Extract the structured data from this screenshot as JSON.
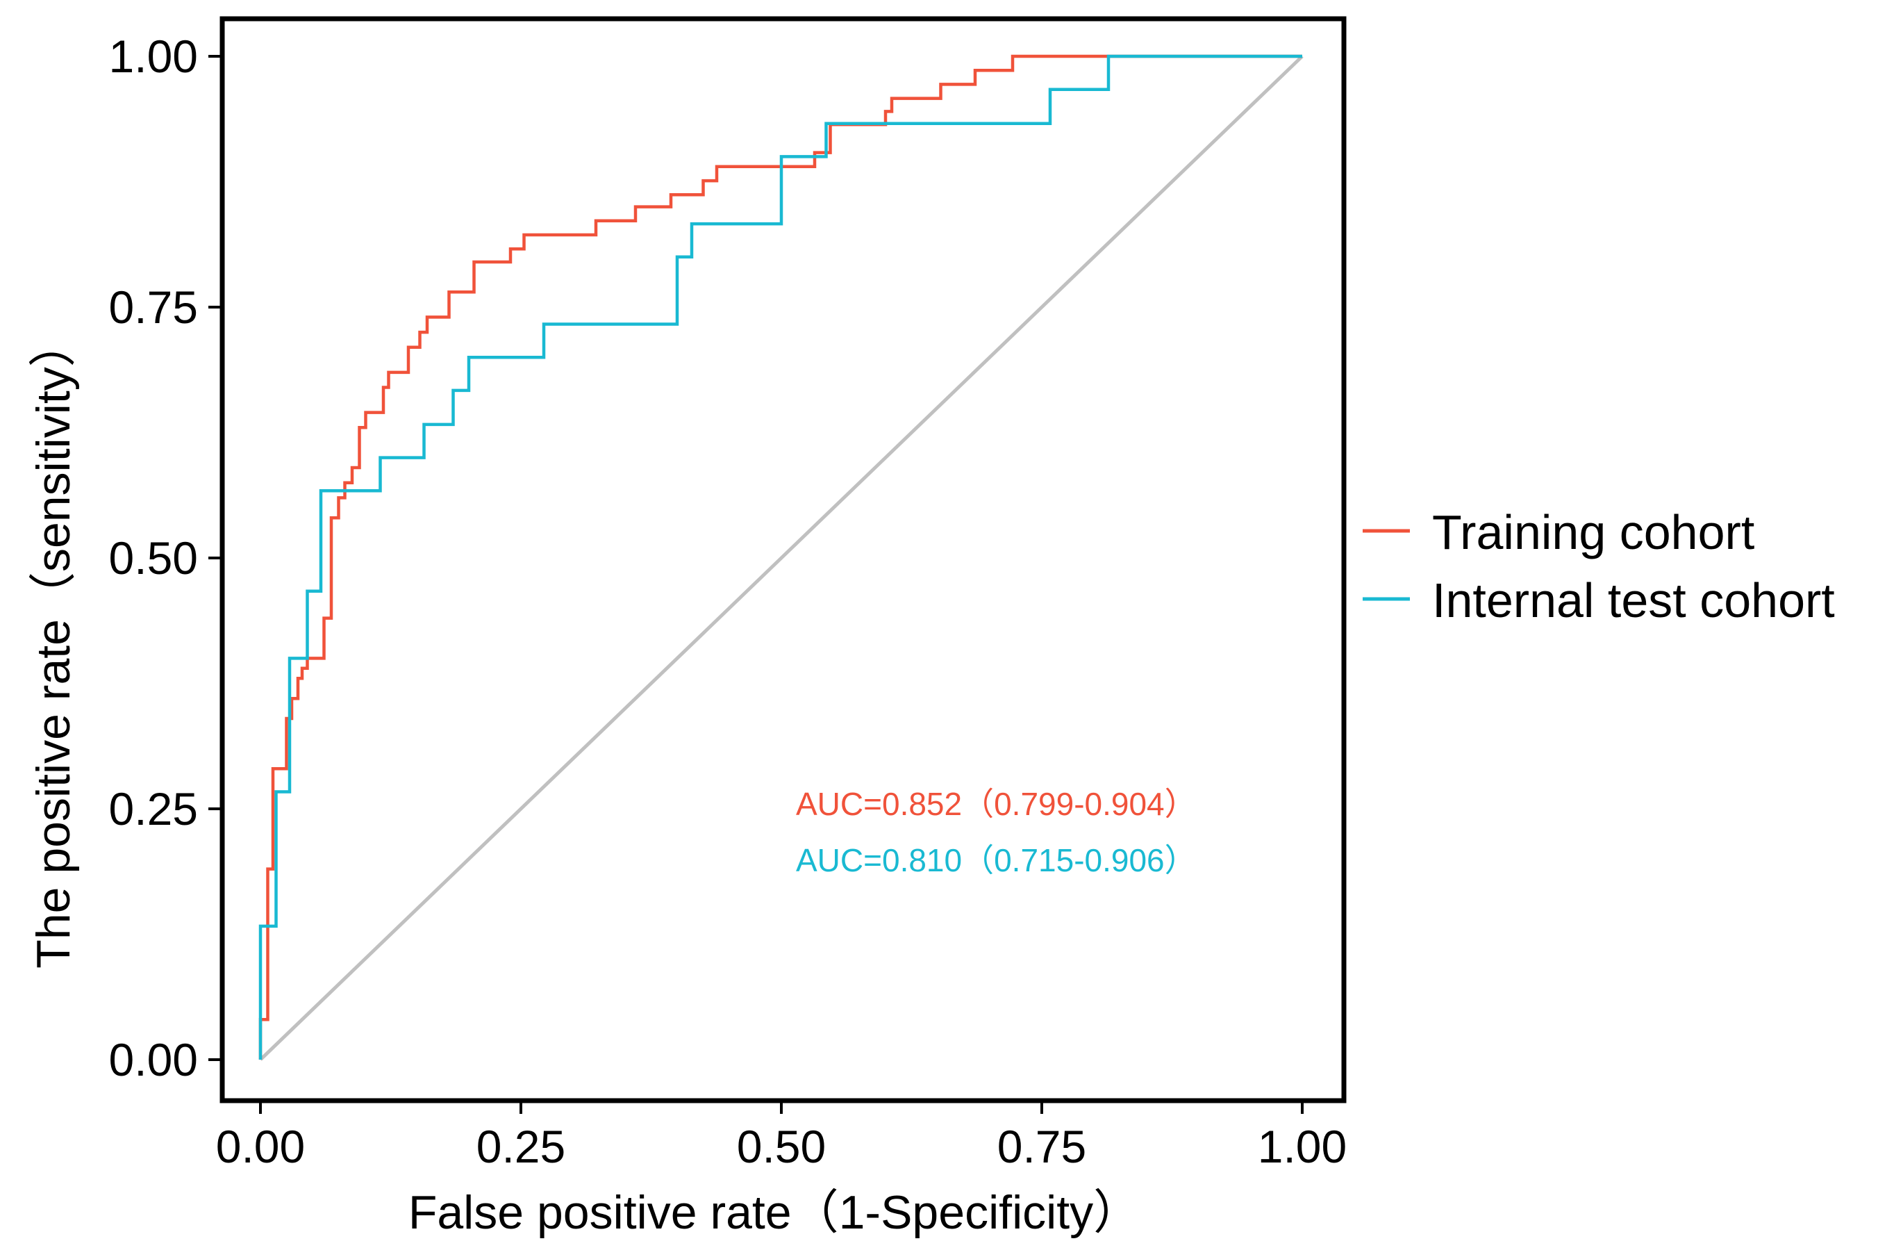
{
  "chart_data": {
    "type": "line",
    "title": "",
    "xlabel": "False positive rate（1-Specificity）",
    "ylabel": "The positive rate（sensitivity）",
    "xlim": [
      0,
      1
    ],
    "ylim": [
      0,
      1
    ],
    "xticks": [
      "0.00",
      "0.25",
      "0.50",
      "0.75",
      "1.00"
    ],
    "yticks": [
      "0.00",
      "0.25",
      "0.50",
      "0.75",
      "1.00"
    ],
    "grid": false,
    "legend_position": "right",
    "diagonal_color": "#c0c0c0",
    "series": [
      {
        "name": "Training cohort",
        "color": "#f0523a",
        "auc_label": "AUC=0.852（0.799-0.904）",
        "points": [
          [
            0.0,
            0.0
          ],
          [
            0.0,
            0.04
          ],
          [
            0.007,
            0.04
          ],
          [
            0.007,
            0.19
          ],
          [
            0.012,
            0.19
          ],
          [
            0.012,
            0.29
          ],
          [
            0.025,
            0.29
          ],
          [
            0.025,
            0.34
          ],
          [
            0.03,
            0.34
          ],
          [
            0.03,
            0.36
          ],
          [
            0.036,
            0.36
          ],
          [
            0.036,
            0.38
          ],
          [
            0.04,
            0.38
          ],
          [
            0.04,
            0.39
          ],
          [
            0.045,
            0.39
          ],
          [
            0.045,
            0.4
          ],
          [
            0.061,
            0.4
          ],
          [
            0.061,
            0.44
          ],
          [
            0.068,
            0.44
          ],
          [
            0.068,
            0.54
          ],
          [
            0.075,
            0.54
          ],
          [
            0.075,
            0.56
          ],
          [
            0.081,
            0.56
          ],
          [
            0.081,
            0.575
          ],
          [
            0.088,
            0.575
          ],
          [
            0.088,
            0.59
          ],
          [
            0.095,
            0.59
          ],
          [
            0.095,
            0.63
          ],
          [
            0.101,
            0.63
          ],
          [
            0.101,
            0.645
          ],
          [
            0.118,
            0.645
          ],
          [
            0.118,
            0.67
          ],
          [
            0.123,
            0.67
          ],
          [
            0.123,
            0.685
          ],
          [
            0.142,
            0.685
          ],
          [
            0.142,
            0.71
          ],
          [
            0.153,
            0.71
          ],
          [
            0.153,
            0.725
          ],
          [
            0.16,
            0.725
          ],
          [
            0.16,
            0.74
          ],
          [
            0.181,
            0.74
          ],
          [
            0.181,
            0.765
          ],
          [
            0.205,
            0.765
          ],
          [
            0.205,
            0.795
          ],
          [
            0.24,
            0.795
          ],
          [
            0.24,
            0.808
          ],
          [
            0.253,
            0.808
          ],
          [
            0.253,
            0.822
          ],
          [
            0.322,
            0.822
          ],
          [
            0.322,
            0.836
          ],
          [
            0.36,
            0.836
          ],
          [
            0.36,
            0.85
          ],
          [
            0.394,
            0.85
          ],
          [
            0.394,
            0.862
          ],
          [
            0.425,
            0.862
          ],
          [
            0.425,
            0.876
          ],
          [
            0.438,
            0.876
          ],
          [
            0.438,
            0.89
          ],
          [
            0.532,
            0.89
          ],
          [
            0.532,
            0.904
          ],
          [
            0.547,
            0.904
          ],
          [
            0.547,
            0.932
          ],
          [
            0.6,
            0.932
          ],
          [
            0.6,
            0.945
          ],
          [
            0.606,
            0.945
          ],
          [
            0.606,
            0.958
          ],
          [
            0.653,
            0.958
          ],
          [
            0.653,
            0.972
          ],
          [
            0.686,
            0.972
          ],
          [
            0.686,
            0.986
          ],
          [
            0.722,
            0.986
          ],
          [
            0.722,
            1.0
          ],
          [
            1.0,
            1.0
          ]
        ]
      },
      {
        "name": "Internal test cohort",
        "color": "#19b9d2",
        "auc_label": "AUC=0.810（0.715-0.906）",
        "points": [
          [
            0.0,
            0.0
          ],
          [
            0.0,
            0.133
          ],
          [
            0.015,
            0.133
          ],
          [
            0.015,
            0.267
          ],
          [
            0.028,
            0.267
          ],
          [
            0.028,
            0.4
          ],
          [
            0.045,
            0.4
          ],
          [
            0.045,
            0.467
          ],
          [
            0.058,
            0.467
          ],
          [
            0.058,
            0.567
          ],
          [
            0.115,
            0.567
          ],
          [
            0.115,
            0.6
          ],
          [
            0.157,
            0.6
          ],
          [
            0.157,
            0.633
          ],
          [
            0.185,
            0.633
          ],
          [
            0.185,
            0.667
          ],
          [
            0.2,
            0.667
          ],
          [
            0.2,
            0.7
          ],
          [
            0.272,
            0.7
          ],
          [
            0.272,
            0.733
          ],
          [
            0.4,
            0.733
          ],
          [
            0.4,
            0.8
          ],
          [
            0.414,
            0.8
          ],
          [
            0.414,
            0.833
          ],
          [
            0.5,
            0.833
          ],
          [
            0.5,
            0.9
          ],
          [
            0.543,
            0.9
          ],
          [
            0.543,
            0.933
          ],
          [
            0.758,
            0.933
          ],
          [
            0.758,
            0.967
          ],
          [
            0.814,
            0.967
          ],
          [
            0.814,
            1.0
          ],
          [
            1.0,
            1.0
          ]
        ]
      }
    ]
  }
}
